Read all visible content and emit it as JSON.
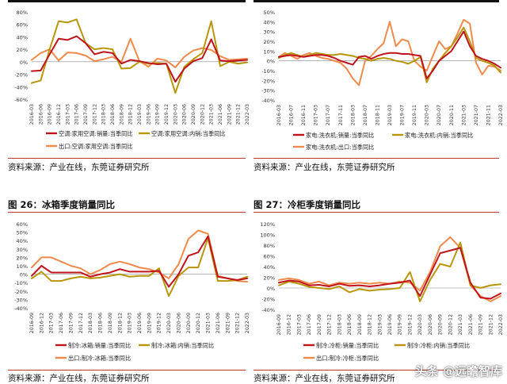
{
  "colors": {
    "red": "#c0141c",
    "gold": "#b8960a",
    "orange": "#ee8a4c",
    "rule": "#c0392b"
  },
  "figure_titles": [
    "图 26：冰箱季度销量同比",
    "图 27：冷柜季度销量同比"
  ],
  "sources": [
    "资料来源：产业在线，东莞证券研究所",
    "资料来源：产业在线，东莞证券研究所",
    "资料来源：产业在线，东莞证券研究所",
    "资料来源：产业在线，东莞证券研究所"
  ],
  "watermark": "头条 @远瞻智库",
  "chart_data": [
    {
      "type": "line",
      "categories": [
        "2016-03",
        "2016-06",
        "2016-09",
        "2016-12",
        "2017-03",
        "2017-06",
        "2017-09",
        "2017-12",
        "2018-03",
        "2018-06",
        "2018-09",
        "2018-12",
        "2019-03",
        "2019-06",
        "2019-09",
        "2019-12",
        "2020-03",
        "2020-06",
        "2020-09",
        "2020-12",
        "2021-03",
        "2021-06",
        "2021-09",
        "2021-12",
        "2022-03"
      ],
      "tick_labels": [
        "2016-03",
        "2016-06",
        "2016-09",
        "2016-12",
        "2017-03",
        "2017-06",
        "2017-09",
        "2017-12",
        "2018-03",
        "2018-06",
        "2018-09",
        "2018-12",
        "2019-03",
        "2019-06",
        "2019-09",
        "2019-12",
        "2020-03",
        "2020-06",
        "2020-09",
        "2020-12",
        "2021-03",
        "2021-06",
        "2021-09",
        "2021-12",
        "2022-03"
      ],
      "ylim": [
        -60,
        80
      ],
      "yticks": [
        -60,
        -40,
        -20,
        0,
        20,
        40,
        60,
        80
      ],
      "series": [
        {
          "name": "空调:家用空调:销量:当季同比",
          "color": "#c0141c",
          "values": [
            -15,
            -14,
            12,
            37,
            35,
            41,
            30,
            12,
            16,
            14,
            -3,
            3,
            1,
            -2,
            -4,
            -3,
            -32,
            -11,
            1,
            6,
            36,
            2,
            1,
            2,
            3
          ]
        },
        {
          "name": "空调:家用空调:内销:当季同比",
          "color": "#b8960a",
          "values": [
            -34,
            -30,
            20,
            65,
            63,
            68,
            30,
            20,
            22,
            20,
            -11,
            -10,
            0,
            -3,
            -2,
            -3,
            -50,
            -8,
            4,
            14,
            65,
            -7,
            0,
            -3,
            -1
          ]
        },
        {
          "name": "出口:空调:家用空调:当季同比",
          "color": "#ee8a4c",
          "values": [
            3,
            14,
            20,
            2,
            15,
            14,
            10,
            1,
            4,
            8,
            0,
            37,
            1,
            -8,
            5,
            2,
            -9,
            8,
            18,
            22,
            19,
            9,
            3,
            4,
            5
          ]
        }
      ]
    },
    {
      "type": "line",
      "categories": [
        "2016-03",
        "2016-05",
        "2016-07",
        "2016-09",
        "2016-11",
        "2017-01",
        "2017-03",
        "2017-05",
        "2017-07",
        "2017-09",
        "2017-11",
        "2018-01",
        "2018-03",
        "2018-05",
        "2018-07",
        "2018-09",
        "2018-11",
        "2019-01",
        "2019-03",
        "2019-05",
        "2019-07",
        "2019-09",
        "2019-11",
        "2020-01",
        "2020-03",
        "2020-05",
        "2020-07",
        "2020-09",
        "2020-11",
        "2021-01",
        "2021-03",
        "2021-05",
        "2021-07",
        "2021-09",
        "2021-11",
        "2022-01",
        "2022-03"
      ],
      "tick_labels": [
        "2016-03",
        "2016-07",
        "2016-11",
        "2017-03",
        "2017-07",
        "2017-11",
        "2018-03",
        "2018-07",
        "2018-11",
        "2019-03",
        "2019-07",
        "2019-11",
        "2020-03",
        "2020-07",
        "2020-11",
        "2021-03",
        "2021-07",
        "2021-11",
        "2022-03"
      ],
      "ylim": [
        -40,
        50
      ],
      "yticks": [
        -40,
        -30,
        -20,
        -10,
        0,
        10,
        20,
        30,
        40,
        50
      ],
      "series": [
        {
          "name": "家电:洗衣机:销量:当季同比",
          "color": "#c0141c",
          "values": [
            4,
            5,
            6,
            5,
            4,
            5,
            6,
            6,
            5,
            3,
            0,
            -2,
            -4,
            4,
            5,
            2,
            5,
            7,
            8,
            8,
            7,
            7,
            6,
            5,
            -18,
            -10,
            0,
            5,
            10,
            20,
            30,
            15,
            5,
            2,
            0,
            -3,
            -7
          ]
        },
        {
          "name": "家电:洗衣机:内销:当季同比",
          "color": "#b8960a",
          "values": [
            3,
            6,
            8,
            6,
            4,
            6,
            8,
            7,
            6,
            6,
            7,
            6,
            5,
            3,
            2,
            0,
            2,
            3,
            2,
            0,
            -1,
            -3,
            0,
            4,
            -22,
            -8,
            0,
            8,
            15,
            24,
            34,
            20,
            3,
            0,
            -2,
            -5,
            -12
          ]
        },
        {
          "name": "家电:洗衣机:出口:当季同比",
          "color": "#ee8a4c",
          "values": [
            4,
            8,
            5,
            2,
            6,
            8,
            5,
            3,
            2,
            0,
            -2,
            -8,
            -18,
            -25,
            0,
            5,
            12,
            18,
            40,
            15,
            22,
            20,
            0,
            -6,
            -10,
            5,
            20,
            12,
            15,
            28,
            42,
            38,
            -2,
            -14,
            -5,
            -6,
            -10
          ]
        }
      ]
    },
    {
      "type": "line",
      "categories": [
        "2016-09",
        "2016-12",
        "2017-03",
        "2017-06",
        "2017-09",
        "2017-12",
        "2018-03",
        "2018-06",
        "2018-09",
        "2018-12",
        "2019-03",
        "2019-06",
        "2019-09",
        "2019-12",
        "2020-03",
        "2020-06",
        "2020-09",
        "2020-12",
        "2021-03",
        "2021-06",
        "2021-09",
        "2021-12",
        "2022-03"
      ],
      "tick_labels": [
        "2016-09",
        "2016-12",
        "2017-03",
        "2017-06",
        "2017-09",
        "2017-12",
        "2018-03",
        "2018-06",
        "2018-09",
        "2018-12",
        "2019-03",
        "2019-06",
        "2019-09",
        "2019-12",
        "2020-03",
        "2020-06",
        "2020-09",
        "2020-12",
        "2021-03",
        "2021-06",
        "2021-09",
        "2021-12",
        "2022-03"
      ],
      "ylim": [
        -40,
        60
      ],
      "yticks": [
        -40,
        -30,
        -20,
        -10,
        0,
        10,
        20,
        30,
        40,
        50,
        60
      ],
      "series": [
        {
          "name": "制冷:冰箱:销量:当季同比",
          "color": "#c0141c",
          "values": [
            -2,
            10,
            2,
            2,
            2,
            2,
            -3,
            0,
            2,
            6,
            3,
            3,
            3,
            4,
            -15,
            0,
            22,
            26,
            45,
            -3,
            -5,
            -7,
            -5
          ]
        },
        {
          "name": "制冷:冰箱:内销:当季同比",
          "color": "#b8960a",
          "values": [
            -5,
            3,
            -8,
            -8,
            -5,
            -3,
            -5,
            -4,
            -2,
            0,
            -3,
            -2,
            -2,
            7,
            -26,
            -2,
            8,
            8,
            43,
            -8,
            -8,
            -7,
            -3
          ]
        },
        {
          "name": "出口:制冷:冰箱:当季同比",
          "color": "#ee8a4c",
          "values": [
            8,
            20,
            20,
            15,
            10,
            7,
            0,
            5,
            12,
            15,
            12,
            8,
            6,
            2,
            -5,
            12,
            42,
            52,
            48,
            -2,
            -5,
            -8,
            -9
          ]
        }
      ]
    },
    {
      "type": "line",
      "categories": [
        "2016-09",
        "2016-12",
        "2017-03",
        "2017-06",
        "2017-09",
        "2017-12",
        "2018-03",
        "2018-06",
        "2018-09",
        "2018-12",
        "2019-03",
        "2019-06",
        "2019-09",
        "2019-12",
        "2020-03",
        "2020-06",
        "2020-09",
        "2020-12",
        "2021-03",
        "2021-06",
        "2021-09",
        "2021-12",
        "2022-03"
      ],
      "tick_labels": [
        "2016-09",
        "2016-12",
        "2017-03",
        "2017-06",
        "2017-09",
        "2017-12",
        "2018-03",
        "2018-06",
        "2018-09",
        "2018-12",
        "2019-03",
        "2019-06",
        "2019-09",
        "2019-12",
        "2020-03",
        "2020-06",
        "2020-09",
        "2020-12",
        "2021-03",
        "2021-06",
        "2021-09",
        "2021-12",
        "2022-03"
      ],
      "ylim": [
        -40,
        120
      ],
      "yticks": [
        -40,
        -20,
        0,
        20,
        40,
        60,
        80,
        100,
        120
      ],
      "series": [
        {
          "name": "制冷:冷柜:销量:当季同比",
          "color": "#c0141c",
          "values": [
            10,
            14,
            12,
            5,
            6,
            3,
            8,
            4,
            5,
            3,
            5,
            8,
            10,
            14,
            -15,
            25,
            65,
            70,
            75,
            10,
            -18,
            -20,
            -10
          ]
        },
        {
          "name": "制冷:冷柜:内销:当季同比",
          "color": "#b8960a",
          "values": [
            5,
            12,
            8,
            2,
            0,
            -2,
            3,
            -8,
            -2,
            -5,
            -3,
            -2,
            0,
            30,
            -25,
            15,
            45,
            40,
            85,
            5,
            0,
            5,
            7
          ]
        },
        {
          "name": "出口:制冷:冷柜:当季同比",
          "color": "#ee8a4c",
          "values": [
            15,
            18,
            15,
            8,
            12,
            5,
            10,
            8,
            10,
            8,
            10,
            8,
            12,
            10,
            -5,
            30,
            78,
            95,
            75,
            5,
            -15,
            -25,
            -15
          ]
        }
      ]
    }
  ]
}
